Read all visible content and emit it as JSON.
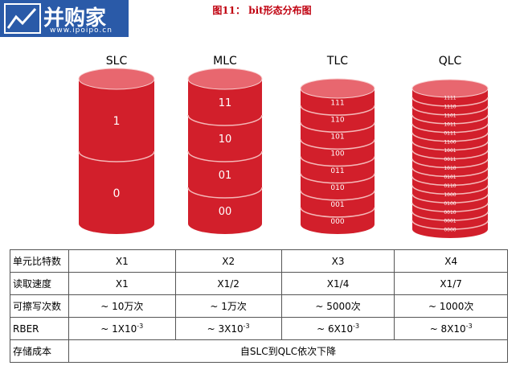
{
  "header": {
    "logo": "并购家",
    "url": "www.ipoipo.cn",
    "title": "图11： bit形态分布图"
  },
  "cylinders": [
    {
      "name": "SLC",
      "layers": [
        "1",
        "0"
      ]
    },
    {
      "name": "MLC",
      "layers": [
        "11",
        "10",
        "01",
        "00"
      ]
    },
    {
      "name": "TLC",
      "layers": [
        "111",
        "110",
        "101",
        "100",
        "011",
        "010",
        "001",
        "000"
      ]
    },
    {
      "name": "QLC",
      "layers": [
        "1111",
        "1110",
        "1101",
        "1011",
        "0111",
        "1100",
        "1001",
        "0011",
        "1010",
        "0101",
        "0110",
        "1000",
        "0100",
        "0010",
        "0001",
        "0000"
      ]
    }
  ],
  "table": {
    "rows": [
      [
        "单元比特数",
        "X1",
        "X2",
        "X3",
        "X4"
      ],
      [
        "读取速度",
        "X1",
        "X1/2",
        "X1/4",
        "X1/7"
      ],
      [
        "可擦写次数",
        "~ 10万次",
        "~ 1万次",
        "~ 5000次",
        "~ 1000次"
      ],
      [
        "RBER",
        {
          "base": "~ 1X10",
          "exp": "-3"
        },
        {
          "base": "~ 3X10",
          "exp": "-3"
        },
        {
          "base": "~ 6X10",
          "exp": "-3"
        },
        {
          "base": "~ 8X10",
          "exp": "-3"
        }
      ],
      [
        "存储成本",
        "自SLC到QLC依次下降"
      ]
    ]
  }
}
